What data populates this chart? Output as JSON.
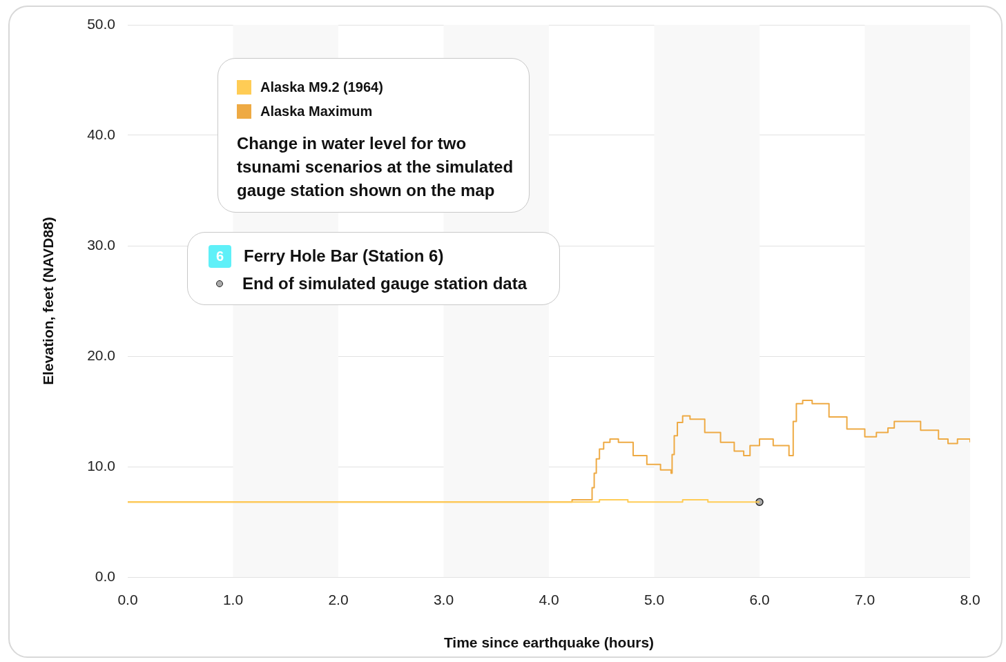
{
  "chart_data": {
    "type": "step",
    "title": "Ferry Hole Bar (Station 6)",
    "subtitle": "Change in water level for two tsunami scenarios at the simulated gauge station shown on the map",
    "xlabel": "Time since earthquake (hours)",
    "ylabel": "Elevation, feet (NAVD88)",
    "annotations": [
      "6"
    ],
    "xlim": [
      0,
      8
    ],
    "xticks": [
      {
        "value": 0,
        "label": "0.0"
      },
      {
        "value": 1,
        "label": "1.0"
      },
      {
        "value": 2,
        "label": "2.0"
      },
      {
        "value": 3,
        "label": "3.0"
      },
      {
        "value": 4,
        "label": "4.0"
      },
      {
        "value": 5,
        "label": "5.0"
      },
      {
        "value": 6,
        "label": "6.0"
      },
      {
        "value": 7,
        "label": "7.0"
      },
      {
        "value": 8,
        "label": "8.0"
      }
    ],
    "ylim": [
      0,
      50
    ],
    "yticks": [
      {
        "value": 0,
        "label": "0.0"
      },
      {
        "value": 10,
        "label": "10.0"
      },
      {
        "value": 20,
        "label": "20.0"
      },
      {
        "value": 30,
        "label": "30.0"
      },
      {
        "value": 40,
        "label": "40.0"
      },
      {
        "value": 50,
        "label": "50.0"
      }
    ],
    "grid": "y",
    "legend": "top left",
    "bands": [
      {
        "axis": "x",
        "from": 1,
        "to": 2,
        "color": "#f8f8f8"
      },
      {
        "axis": "x",
        "from": 3,
        "to": 4,
        "color": "#f8f8f8"
      },
      {
        "axis": "x",
        "from": 5,
        "to": 6,
        "color": "#f8f8f8"
      },
      {
        "axis": "x",
        "from": 7,
        "to": 8,
        "color": "#f8f8f8"
      }
    ],
    "series": [
      {
        "name": "Alaska M9.2 (1964)",
        "color": "#ffcc55",
        "x": [
          0,
          4.48,
          4.75,
          5.27,
          5.51,
          6.0
        ],
        "values": [
          6.8,
          7.0,
          6.8,
          7.0,
          6.8,
          6.8
        ]
      },
      {
        "name": "Alaska Maximum",
        "color": "#eeaa44",
        "x": [
          0,
          4.22,
          4.41,
          4.43,
          4.45,
          4.48,
          4.52,
          4.58,
          4.66,
          4.8,
          4.93,
          5.06,
          5.16,
          5.17,
          5.19,
          5.22,
          5.27,
          5.34,
          5.48,
          5.63,
          5.76,
          5.85,
          5.91,
          6.0,
          6.13,
          6.28,
          6.32,
          6.35,
          6.41,
          6.5,
          6.66,
          6.83,
          7.0,
          7.11,
          7.22,
          7.28,
          7.36,
          7.53,
          7.7,
          7.79,
          7.88,
          7.94,
          8.0
        ],
        "values": [
          6.8,
          7.0,
          8.1,
          9.4,
          10.7,
          11.6,
          12.2,
          12.5,
          12.2,
          11.0,
          10.2,
          9.7,
          9.4,
          11.1,
          12.8,
          14.0,
          14.6,
          14.3,
          13.1,
          12.2,
          11.4,
          11.0,
          11.9,
          12.5,
          11.9,
          11.0,
          14.1,
          15.7,
          16.0,
          15.7,
          14.5,
          13.4,
          12.7,
          13.1,
          13.5,
          14.1,
          14.1,
          13.3,
          12.5,
          12.1,
          12.5,
          12.5,
          12.2
        ]
      },
      {
        "name": "End of simulated gauge station data",
        "type": "scatter",
        "marker": "circle",
        "color": "#aaaaaa",
        "x": [
          6.0
        ],
        "values": [
          6.8
        ]
      }
    ]
  }
}
